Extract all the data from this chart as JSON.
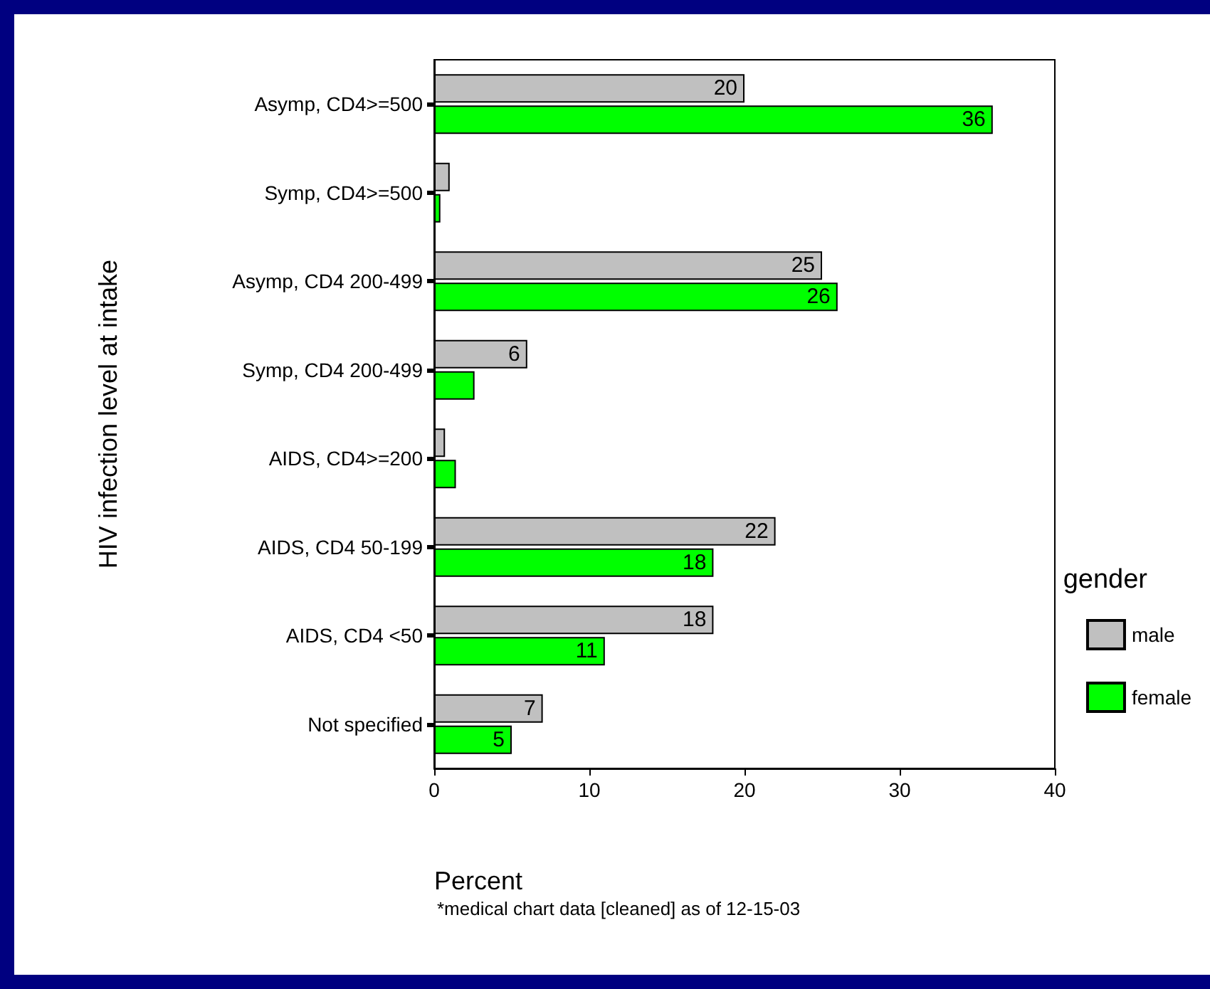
{
  "chart_data": {
    "type": "bar",
    "orientation": "horizontal",
    "xlabel": "Percent",
    "ylabel": "HIV infection level at intake",
    "legend_title": "gender",
    "legend": "right",
    "categories": [
      "Asymp, CD4>=500",
      "Symp, CD4>=500",
      "Asymp, CD4 200-499",
      "Symp, CD4 200-499",
      "AIDS, CD4>=200",
      "AIDS, CD4 50-199",
      "AIDS, CD4 <50",
      "Not specified"
    ],
    "series": [
      {
        "name": "male",
        "color": "#c0c0c0",
        "values": [
          20,
          1.0,
          25,
          6,
          0.7,
          22,
          18,
          7
        ],
        "value_labels": [
          "20",
          null,
          "25",
          "6",
          null,
          "22",
          "18",
          "7"
        ]
      },
      {
        "name": "female",
        "color": "#00ff00",
        "values": [
          36,
          0.4,
          26,
          2.6,
          1.4,
          18,
          11,
          5
        ],
        "value_labels": [
          "36",
          null,
          "26",
          null,
          null,
          "18",
          "11",
          "5"
        ]
      }
    ],
    "xlim": [
      0,
      40
    ],
    "xticks": [
      0,
      10,
      20,
      30,
      40
    ],
    "grid": false,
    "annotations": [
      "*medical chart data [cleaned] as of 12-15-03"
    ]
  }
}
